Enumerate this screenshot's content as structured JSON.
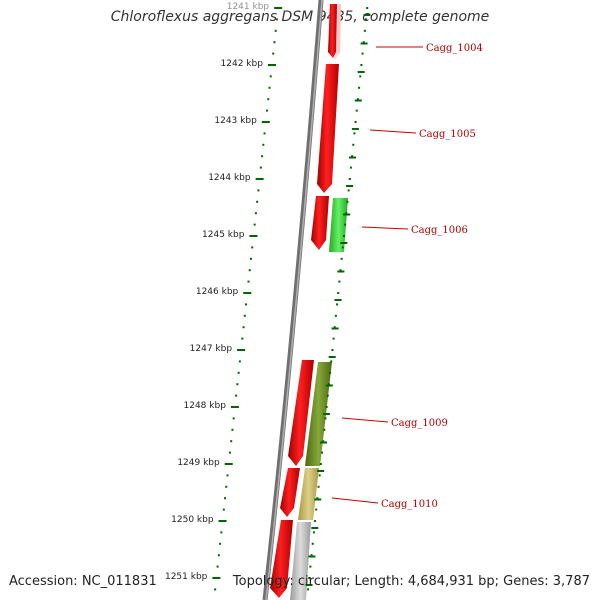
{
  "header": {
    "title": "Chloroflexus aggregans DSM 9485, complete genome"
  },
  "footer": {
    "accession": "Accession: NC_011831",
    "summary": "Topology: circular; Length: 4,684,931 bp; Genes: 3,787"
  },
  "scale": {
    "ticks": [
      "1241 kbp",
      "1242 kbp",
      "1243 kbp",
      "1244 kbp",
      "1245 kbp",
      "1246 kbp",
      "1247 kbp",
      "1248 kbp",
      "1249 kbp",
      "1250 kbp",
      "1251 kbp"
    ]
  },
  "gene_labels": [
    "Cagg_1004",
    "Cagg_1005",
    "Cagg_1006",
    "Cagg_1009",
    "Cagg_1010"
  ],
  "colors": {
    "reverse_strand": "#ff0000",
    "forward_gene_1006": "#33dd33",
    "forward_gene_1009": "#6b8e23",
    "forward_gene_1010": "#c8b860",
    "forward_gene_1011": "#c0c0c0",
    "backbone": "#808080",
    "scale_ticks": "#006600",
    "label_leader": "#cc0000"
  }
}
